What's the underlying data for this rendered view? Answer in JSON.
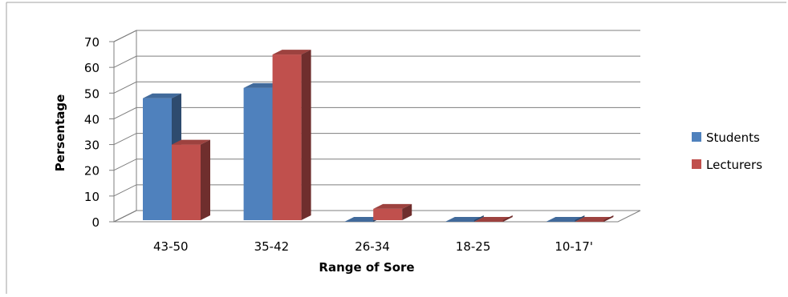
{
  "chart_data": {
    "type": "bar",
    "style": "3d-clustered-column",
    "title": "",
    "xlabel": "Range of Sore",
    "ylabel": "Persentage",
    "categories": [
      "43-50",
      "35-42",
      "26-34",
      "18-25",
      "10-17'"
    ],
    "series": [
      {
        "name": "Students",
        "color": "#4f81bd",
        "values": [
          48,
          52,
          0,
          0,
          0
        ]
      },
      {
        "name": "Lecturers",
        "color": "#c0504d",
        "values": [
          30,
          65,
          5,
          0,
          0
        ]
      }
    ],
    "ylim": [
      0,
      70
    ],
    "yticks": [
      "0",
      "10",
      "20",
      "30",
      "40",
      "50",
      "60",
      "70"
    ],
    "grid": true,
    "legend": "right"
  }
}
